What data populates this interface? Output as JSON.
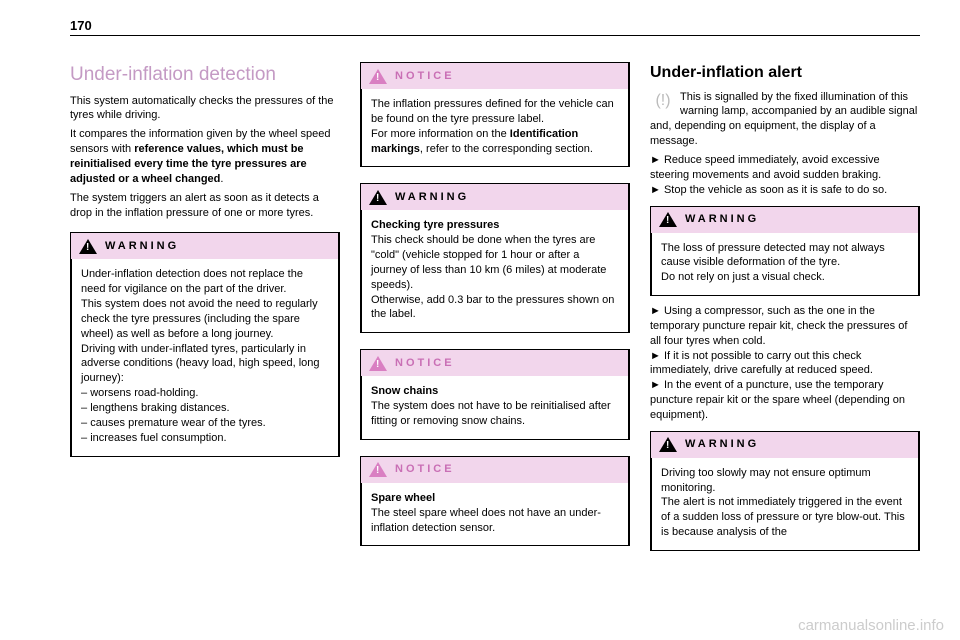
{
  "page_number": "170",
  "watermark": "carmanualsonline.info",
  "col1": {
    "heading": "Under-inflation detection",
    "p1": "This system automatically checks the pressures of the tyres while driving.",
    "p2a": "It compares the information given by the wheel speed sensors with ",
    "p2b": "reference values, which must be reinitialised every time the tyre pressures are adjusted or a wheel changed",
    "p2c": ".",
    "p3": "The system triggers an alert as soon as it detects a drop in the inflation pressure of one or more tyres.",
    "warn": {
      "title": "WARNING",
      "b1": "Under-inflation detection does not replace the need for vigilance on the part of the driver.",
      "b2": "This system does not avoid the need to regularly check the tyre pressures (including the spare wheel) as well as before a long journey.",
      "b3": "Driving with under-inflated tyres, particularly in adverse conditions (heavy load, high speed, long journey):",
      "li1": "worsens road-holding.",
      "li2": "lengthens braking distances.",
      "li3": "causes premature wear of the tyres.",
      "li4": "increases fuel consumption."
    }
  },
  "col2": {
    "notice1": {
      "title": "NOTICE",
      "b1": "The inflation pressures defined for the vehicle can be found on the tyre pressure label.",
      "b2a": "For more information on the ",
      "b2b": "Identification markings",
      "b2c": ", refer to the corresponding section."
    },
    "warn": {
      "title": "WARNING",
      "h": "Checking tyre pressures",
      "b1": "This check should be done when the tyres are \"cold\" (vehicle stopped for 1 hour or after a journey of less than 10 km (6 miles) at moderate speeds).",
      "b2": "Otherwise, add 0.3 bar to the pressures shown on the label."
    },
    "notice2": {
      "title": "NOTICE",
      "h": "Snow chains",
      "b": "The system does not have to be reinitialised after fitting or removing snow chains."
    },
    "notice3": {
      "title": "NOTICE",
      "h": "Spare wheel",
      "b": "The steel spare wheel does not have an under-inflation detection sensor."
    }
  },
  "col3": {
    "heading": "Under-inflation alert",
    "p1": "This is signalled by the fixed illumination of this warning lamp, accompanied by an audible signal and, depending on equipment, the display of a message.",
    "li1": "Reduce speed immediately, avoid excessive steering movements and avoid sudden braking.",
    "li2": "Stop the vehicle as soon as it is safe to do so.",
    "warn1": {
      "title": "WARNING",
      "b1": "The loss of pressure detected may not always cause visible deformation of the tyre.",
      "b2": "Do not rely on just a visual check."
    },
    "li3": "Using a compressor, such as the one in the temporary puncture repair kit, check the pressures of all four tyres when cold.",
    "li4": "If it is not possible to carry out this check immediately, drive carefully at reduced speed.",
    "li5": "In the event of a puncture, use the temporary puncture repair kit or the spare wheel (depending on equipment).",
    "warn2": {
      "title": "WARNING",
      "b1": "Driving too slowly may not ensure optimum monitoring.",
      "b2": "The alert is not immediately triggered in the event of a sudden loss of pressure or tyre blow-out. This is because analysis of the"
    }
  }
}
